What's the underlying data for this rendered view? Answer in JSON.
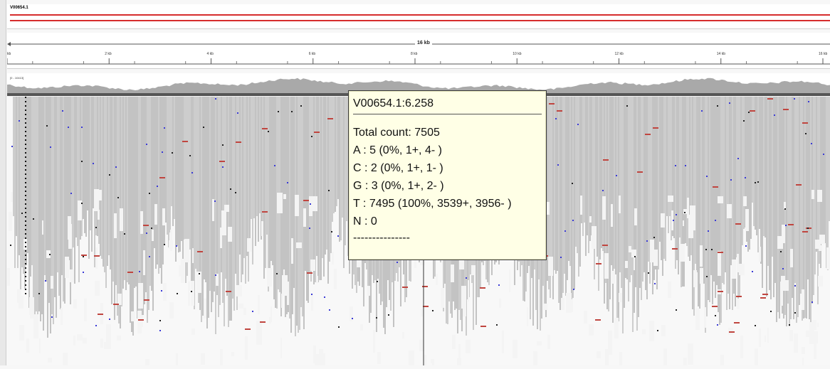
{
  "genome": {
    "chromosome": "V00654.1",
    "span_label": "16 kb",
    "coverage_range": "[0 - 10413]"
  },
  "ruler": {
    "ticks": [
      "kb",
      "2 kb",
      "4 kb",
      "6 kb",
      "8 kb",
      "10 kb",
      "12 kb",
      "14 kb",
      "16 kb"
    ]
  },
  "colors": {
    "coverage": "#a9a9a9",
    "reads": "#c6c6c6",
    "ideogram_line": "#d62d2d",
    "mismatch_red": "#c0453f",
    "mismatch_blue": "#3b3bd6",
    "tooltip_bg": "#ffffe6"
  },
  "tooltip": {
    "title": "V00654.1:6.258",
    "total": "Total count: 7505",
    "a": "A : 5 (0%, 1+, 4- )",
    "c": "C : 2 (0%, 1+, 1- )",
    "g": "G : 3 (0%, 1+, 2- )",
    "t": "T : 7495 (100%, 3539+, 3956- )",
    "n": "N : 0",
    "dashes": "---------------"
  }
}
